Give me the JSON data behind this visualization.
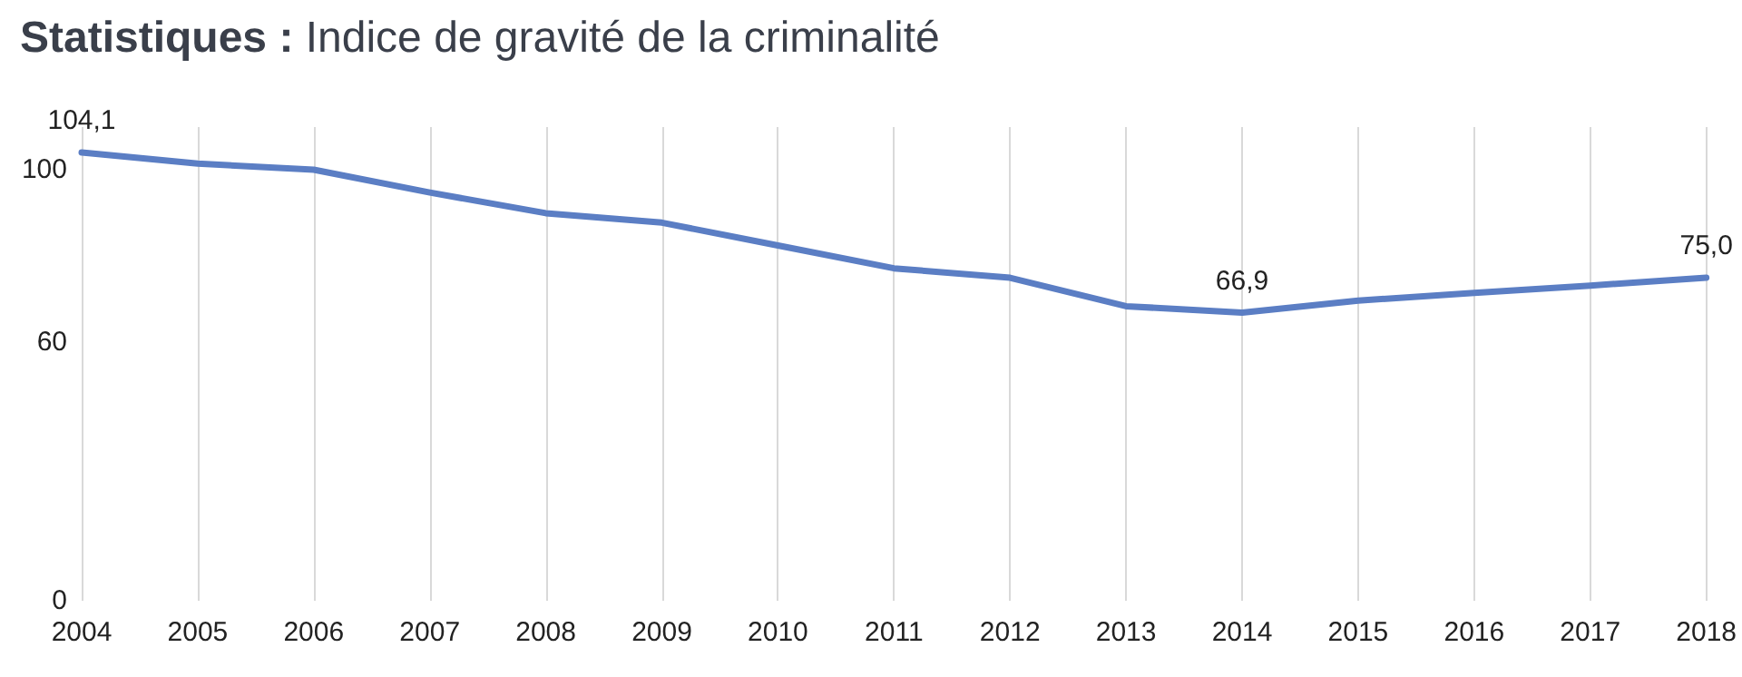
{
  "chart_data": {
    "type": "line",
    "title": "Statistiques : Indice de gravité de la criminalité",
    "categories": [
      "2004",
      "2005",
      "2006",
      "2007",
      "2008",
      "2009",
      "2010",
      "2011",
      "2012",
      "2013",
      "2014",
      "2015",
      "2016",
      "2017",
      "2018"
    ],
    "series": [
      {
        "color": "#5b7ec4",
        "values": [
          104.1,
          101.5,
          100.1,
          94.8,
          90.0,
          87.8,
          82.5,
          77.2,
          75.0,
          68.4,
          66.9,
          69.7,
          71.5,
          73.2,
          75.0
        ],
        "value_labels": [
          "104,1",
          null,
          null,
          null,
          null,
          null,
          null,
          null,
          null,
          null,
          "66,9",
          null,
          null,
          null,
          "75,0"
        ]
      }
    ],
    "ylim": [
      0,
      110
    ],
    "yticks": [
      0,
      60,
      100
    ],
    "grid": "x",
    "marker": "none",
    "line_style": "solid"
  }
}
